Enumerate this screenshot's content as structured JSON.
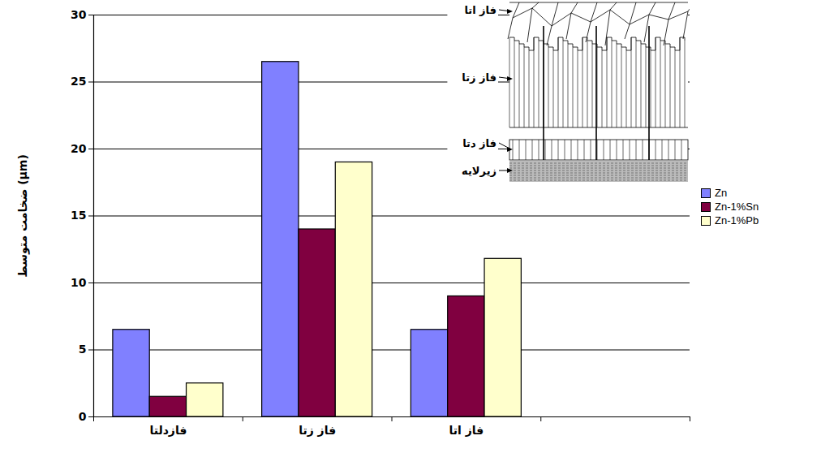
{
  "chart_data": {
    "type": "bar",
    "categories": [
      "فازدلتا",
      "فاز زتا",
      "فاز اتا",
      null
    ],
    "series": [
      {
        "name": "Zn",
        "color": "#8080ff",
        "values": [
          6.5,
          26.5,
          6.5,
          null
        ]
      },
      {
        "name": "Zn-1%Sn",
        "color": "#800040",
        "values": [
          1.5,
          14,
          9,
          null
        ]
      },
      {
        "name": "Zn-1%Pb",
        "color": "#ffffcc",
        "values": [
          2.5,
          19,
          11.8,
          null
        ]
      }
    ],
    "y_label": "ضخامت متوسط (µm)",
    "ylim": [
      0,
      30
    ],
    "yticks": [
      0,
      5,
      10,
      15,
      20,
      25,
      30
    ],
    "grid": true,
    "legend": "right",
    "annotations": [
      "فاز اتا",
      "فاز زتا",
      "فاز دتا",
      "زیرلایه"
    ]
  }
}
